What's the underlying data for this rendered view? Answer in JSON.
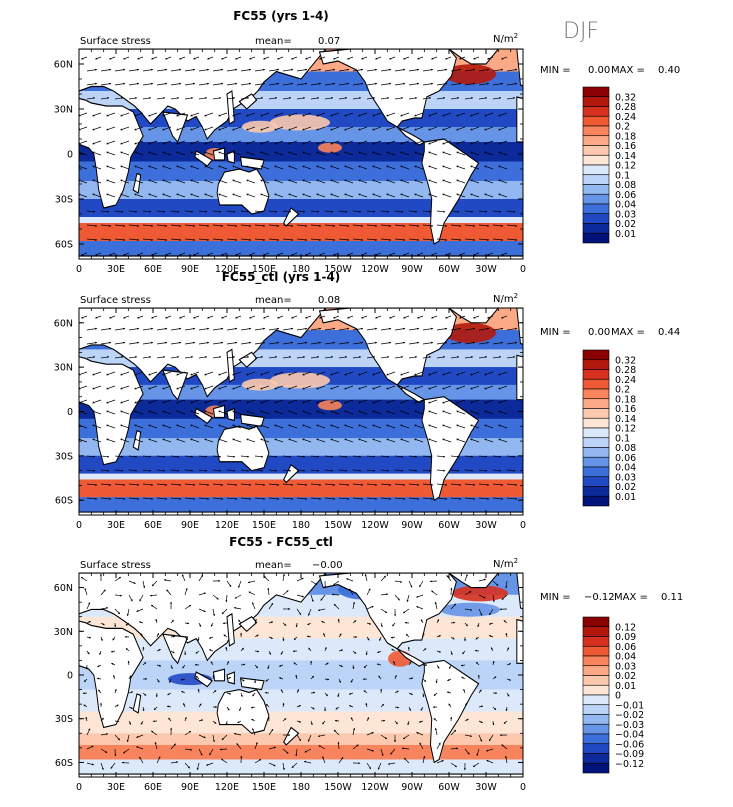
{
  "season": "DJF",
  "panels": [
    {
      "title": "FC55 (yrs 1-4)",
      "field": "Surface stress",
      "mean_label": "mean=",
      "mean": "0.07",
      "units": "N/m",
      "units_sup": "2",
      "min_label": "MIN =",
      "min": "0.00",
      "max_label": "MAX =",
      "max": "0.40",
      "colorbar": [
        "0.32",
        "0.28",
        "0.24",
        "0.2",
        "0.18",
        "0.16",
        "0.14",
        "0.12",
        "0.1",
        "0.08",
        "0.06",
        "0.04",
        "0.03",
        "0.02",
        "0.01"
      ],
      "colors": [
        "#8b0000",
        "#b2180b",
        "#d7301f",
        "#ef5a34",
        "#f7845c",
        "#fba986",
        "#fcc9ae",
        "#fde6d6",
        "#dbe9fb",
        "#bcd4f8",
        "#93b8f1",
        "#6694e6",
        "#3d6fdb",
        "#2149c4",
        "#0c2a99",
        "#00137a"
      ]
    },
    {
      "title": "FC55_ctl (yrs 1-4)",
      "field": "Surface stress",
      "mean_label": "mean=",
      "mean": "0.08",
      "units": "N/m",
      "units_sup": "2",
      "min_label": "MIN =",
      "min": "0.00",
      "max_label": "MAX =",
      "max": "0.44",
      "colorbar": [
        "0.32",
        "0.28",
        "0.24",
        "0.2",
        "0.18",
        "0.16",
        "0.14",
        "0.12",
        "0.1",
        "0.08",
        "0.06",
        "0.04",
        "0.03",
        "0.02",
        "0.01"
      ],
      "colors": [
        "#8b0000",
        "#b2180b",
        "#d7301f",
        "#ef5a34",
        "#f7845c",
        "#fba986",
        "#fcc9ae",
        "#fde6d6",
        "#dbe9fb",
        "#bcd4f8",
        "#93b8f1",
        "#6694e6",
        "#3d6fdb",
        "#2149c4",
        "#0c2a99",
        "#00137a"
      ]
    },
    {
      "title": "FC55 - FC55_ctl",
      "field": "Surface stress",
      "mean_label": "mean=",
      "mean": "−0.00",
      "units": "N/m",
      "units_sup": "2",
      "min_label": "MIN =",
      "min": "−0.12",
      "max_label": "MAX =",
      "max": "0.11",
      "colorbar": [
        "0.12",
        "0.09",
        "0.06",
        "0.04",
        "0.03",
        "0.02",
        "0.01",
        "0",
        "−0.01",
        "−0.02",
        "−0.03",
        "−0.04",
        "−0.06",
        "−0.09",
        "−0.12"
      ],
      "colors": [
        "#8b0000",
        "#b2180b",
        "#d7301f",
        "#ef5a34",
        "#f7845c",
        "#fba986",
        "#fcc9ae",
        "#fde6d6",
        "#dbe9fb",
        "#bcd4f8",
        "#93b8f1",
        "#6694e6",
        "#3d6fdb",
        "#2149c4",
        "#0c2a99",
        "#00137a"
      ]
    }
  ],
  "map": {
    "lon_ticks": [
      "0",
      "30E",
      "60E",
      "90E",
      "120E",
      "150E",
      "180",
      "150W",
      "120W",
      "90W",
      "60W",
      "30W",
      "0"
    ],
    "lat_ticks": [
      "60N",
      "30N",
      "0",
      "30S",
      "60S"
    ],
    "lat_values": [
      60,
      30,
      0,
      -30,
      -60
    ],
    "lat_range": [
      -70,
      70
    ],
    "lon_range": [
      0,
      360
    ]
  }
}
